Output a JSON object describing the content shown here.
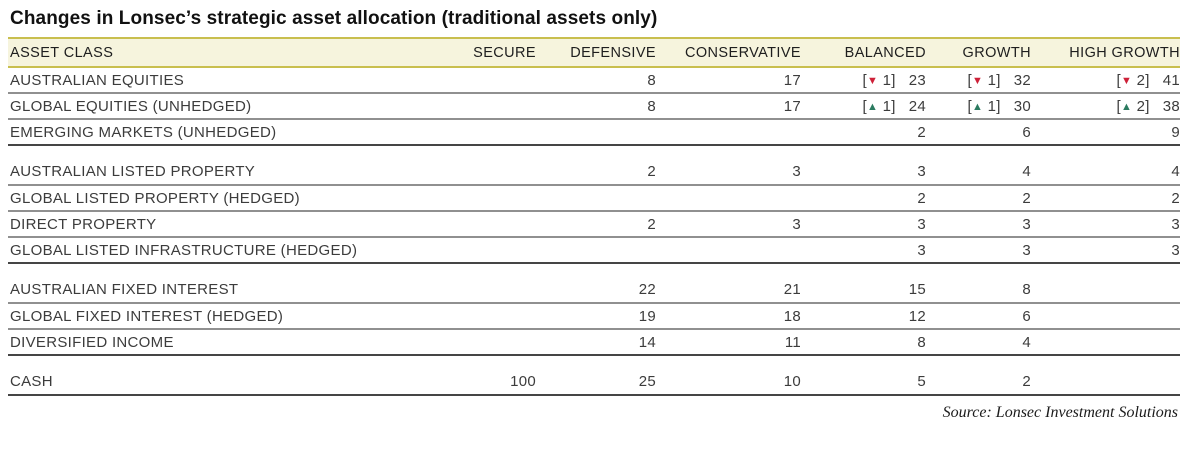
{
  "title": "Changes in Lonsec’s strategic asset allocation (traditional assets only)",
  "source": "Source: Lonsec Investment Solutions",
  "colors": {
    "header_bg": "#f6f4dd",
    "header_border": "#c9bf4e",
    "row_line": "#909090",
    "group_line": "#454545",
    "up": "#2b7b60",
    "down": "#ce2038",
    "text": "#3c3c3c"
  },
  "icons": {
    "down": "triangle-down-icon",
    "up": "triangle-up-icon"
  },
  "table": {
    "columns": [
      "ASSET CLASS",
      "SECURE",
      "DEFENSIVE",
      "CONSERVATIVE",
      "BALANCED",
      "GROWTH",
      "HIGH GROWTH"
    ],
    "groups": [
      {
        "rows": [
          {
            "label": "AUSTRALIAN EQUITIES",
            "cells": [
              "",
              "8",
              "17",
              {
                "dir": "down",
                "delta": "1",
                "value": "23"
              },
              {
                "dir": "down",
                "delta": "1",
                "value": "32"
              },
              {
                "dir": "down",
                "delta": "2",
                "value": "41"
              }
            ]
          },
          {
            "label": "GLOBAL EQUITIES (UNHEDGED)",
            "cells": [
              "",
              "8",
              "17",
              {
                "dir": "up",
                "delta": "1",
                "value": "24"
              },
              {
                "dir": "up",
                "delta": "1",
                "value": "30"
              },
              {
                "dir": "up",
                "delta": "2",
                "value": "38"
              }
            ]
          },
          {
            "label": "EMERGING MARKETS (UNHEDGED)",
            "cells": [
              "",
              "",
              "",
              "2",
              "6",
              "9"
            ]
          }
        ]
      },
      {
        "rows": [
          {
            "label": "AUSTRALIAN LISTED PROPERTY",
            "cells": [
              "",
              "2",
              "3",
              "3",
              "4",
              "4"
            ]
          },
          {
            "label": "GLOBAL LISTED PROPERTY (HEDGED)",
            "cells": [
              "",
              "",
              "",
              "2",
              "2",
              "2"
            ]
          },
          {
            "label": "DIRECT PROPERTY",
            "cells": [
              "",
              "2",
              "3",
              "3",
              "3",
              "3"
            ]
          },
          {
            "label": "GLOBAL LISTED INFRASTRUCTURE (HEDGED)",
            "cells": [
              "",
              "",
              "",
              "3",
              "3",
              "3"
            ]
          }
        ]
      },
      {
        "rows": [
          {
            "label": "AUSTRALIAN FIXED INTEREST",
            "cells": [
              "",
              "22",
              "21",
              "15",
              "8",
              ""
            ]
          },
          {
            "label": "GLOBAL FIXED INTEREST (HEDGED)",
            "cells": [
              "",
              "19",
              "18",
              "12",
              "6",
              ""
            ]
          },
          {
            "label": "DIVERSIFIED INCOME",
            "cells": [
              "",
              "14",
              "11",
              "8",
              "4",
              ""
            ]
          }
        ]
      },
      {
        "rows": [
          {
            "label": "CASH",
            "cells": [
              "100",
              "25",
              "10",
              "5",
              "2",
              ""
            ]
          }
        ]
      }
    ]
  }
}
